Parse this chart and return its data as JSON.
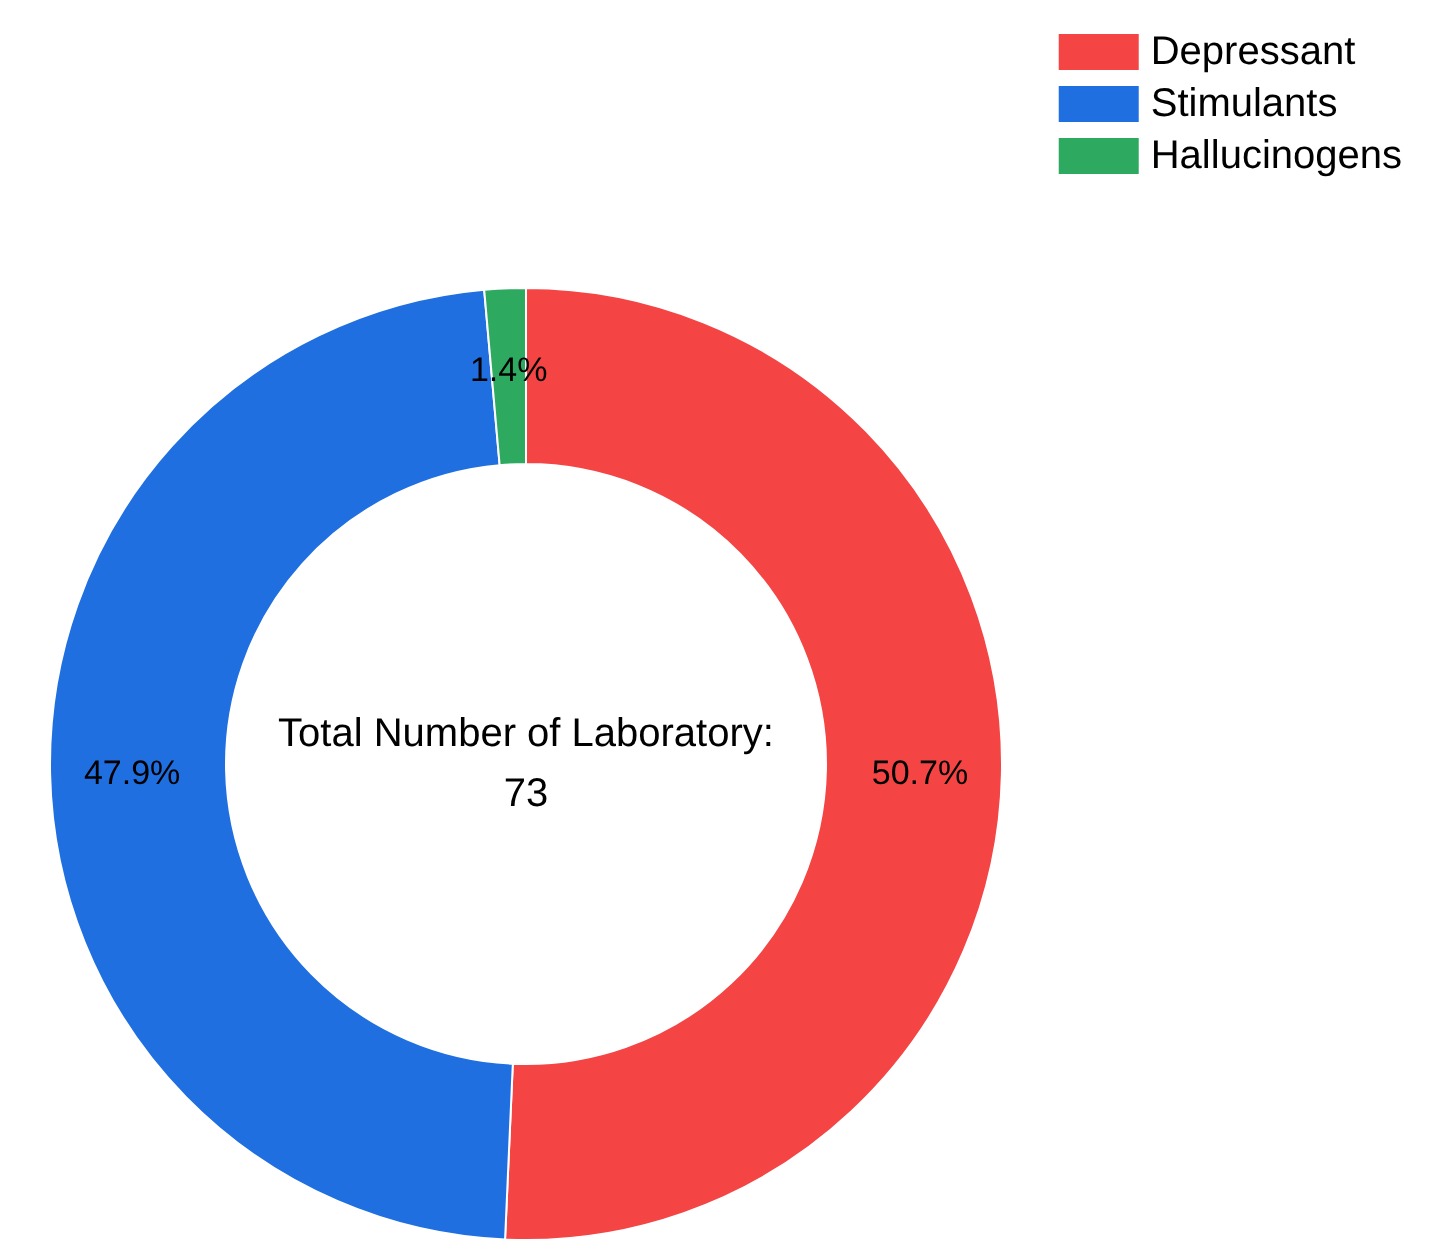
{
  "chart_data": {
    "type": "donut",
    "categories": [
      "Depressant",
      "Stimulants",
      "Hallucinogens"
    ],
    "values": [
      50.7,
      47.9,
      1.4
    ],
    "colors": [
      "#f44444",
      "#1f6fe0",
      "#2eaa60"
    ],
    "value_labels": [
      "50.7%",
      "47.9%",
      "1.4%"
    ],
    "annotations": [
      "Total Number of Laboratory:\n73"
    ],
    "legend": "top right"
  }
}
